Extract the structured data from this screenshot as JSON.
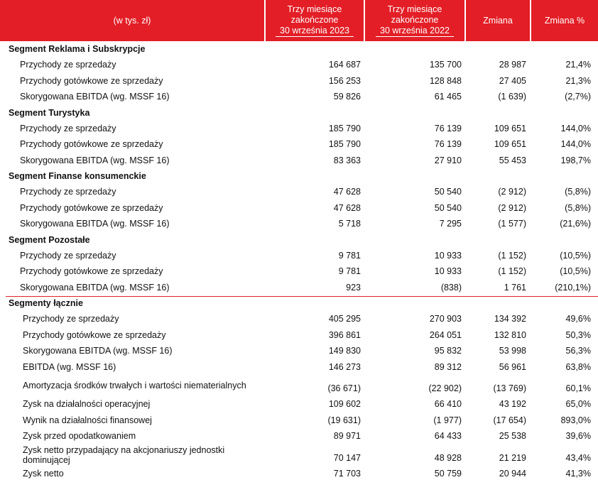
{
  "header": {
    "label": "(w tys. zł)",
    "columns": [
      [
        "Trzy miesiące",
        "zakończone",
        "30 września 2023"
      ],
      [
        "Trzy miesiące",
        "zakończone",
        "30 września 2022"
      ],
      [
        "Zmiana"
      ],
      [
        "Zmiana %"
      ]
    ]
  },
  "sections": [
    {
      "title": "Segment Reklama i Subskrypcje",
      "rows": [
        {
          "label": "Przychody ze sprzedaży",
          "values": [
            "164 687",
            "135 700",
            "28 987",
            "21,4%"
          ]
        },
        {
          "label": "Przychody gotówkowe ze sprzedaży",
          "values": [
            "156 253",
            "128 848",
            "27 405",
            "21,3%"
          ]
        },
        {
          "label": "Skorygowana EBITDA (wg. MSSF 16)",
          "values": [
            "59 826",
            "61 465",
            "(1 639)",
            "(2,7%)"
          ]
        }
      ]
    },
    {
      "title": "Segment Turystyka",
      "rows": [
        {
          "label": "Przychody ze sprzedaży",
          "values": [
            "185 790",
            "76 139",
            "109 651",
            "144,0%"
          ]
        },
        {
          "label": "Przychody gotówkowe ze sprzedaży",
          "values": [
            "185 790",
            "76 139",
            "109 651",
            "144,0%"
          ]
        },
        {
          "label": "Skorygowana EBITDA (wg. MSSF 16)",
          "values": [
            "83 363",
            "27 910",
            "55 453",
            "198,7%"
          ]
        }
      ]
    },
    {
      "title": "Segment Finanse konsumenckie",
      "rows": [
        {
          "label": "Przychody ze sprzedaży",
          "values": [
            "47 628",
            "50 540",
            "(2 912)",
            "(5,8%)"
          ]
        },
        {
          "label": "Przychody gotówkowe ze sprzedaży",
          "values": [
            "47 628",
            "50 540",
            "(2 912)",
            "(5,8%)"
          ]
        },
        {
          "label": "Skorygowana EBITDA (wg. MSSF 16)",
          "values": [
            "5 718",
            "7 295",
            "(1 577)",
            "(21,6%)"
          ]
        }
      ]
    },
    {
      "title": "Segment Pozostałe",
      "rows": [
        {
          "label": "Przychody ze sprzedaży",
          "values": [
            "9 781",
            "10 933",
            "(1 152)",
            "(10,5%)"
          ]
        },
        {
          "label": "Przychody gotówkowe ze sprzedaży",
          "values": [
            "9 781",
            "10 933",
            "(1 152)",
            "(10,5%)"
          ]
        },
        {
          "label": "Skorygowana EBITDA (wg. MSSF 16)",
          "values": [
            "923",
            "(838)",
            "1 761",
            "(210,1%)"
          ]
        }
      ]
    },
    {
      "title": "Segmenty łącznie",
      "rows": [
        {
          "label": "Przychody ze sprzedaży",
          "values": [
            "405 295",
            "270 903",
            "134 392",
            "49,6%"
          ]
        },
        {
          "label": "Przychody gotówkowe ze sprzedaży",
          "values": [
            "396 861",
            "264 051",
            "132 810",
            "50,3%"
          ]
        },
        {
          "label": "Skorygowana EBITDA (wg. MSSF 16)",
          "values": [
            "149 830",
            "95 832",
            "53 998",
            "56,3%"
          ]
        },
        {
          "label": "EBITDA (wg. MSSF 16)",
          "values": [
            "146 273",
            "89 312",
            "56 961",
            "63,8%"
          ]
        },
        {
          "label": "Amortyzacja środków trwałych i wartości niematerialnych",
          "values": [
            "(36 671)",
            "(22 902)",
            "(13 769)",
            "60,1%"
          ]
        },
        {
          "label": "Zysk na działalności operacyjnej",
          "values": [
            "109 602",
            "66 410",
            "43 192",
            "65,0%"
          ]
        },
        {
          "label": "Wynik na działalności finansowej",
          "values": [
            "(19 631)",
            "(1 977)",
            "(17 654)",
            "893,0%"
          ]
        },
        {
          "label": "Zysk przed opodatkowaniem",
          "values": [
            "89 971",
            "64 433",
            "25 538",
            "39,6%"
          ]
        },
        {
          "label": "Zysk netto przypadający na akcjonariuszy jednostki dominującej",
          "values": [
            "70 147",
            "48 928",
            "21 219",
            "43,4%"
          ]
        },
        {
          "label": "Zysk netto",
          "values": [
            "71 703",
            "50 759",
            "20 944",
            "41,3%"
          ]
        }
      ]
    }
  ]
}
